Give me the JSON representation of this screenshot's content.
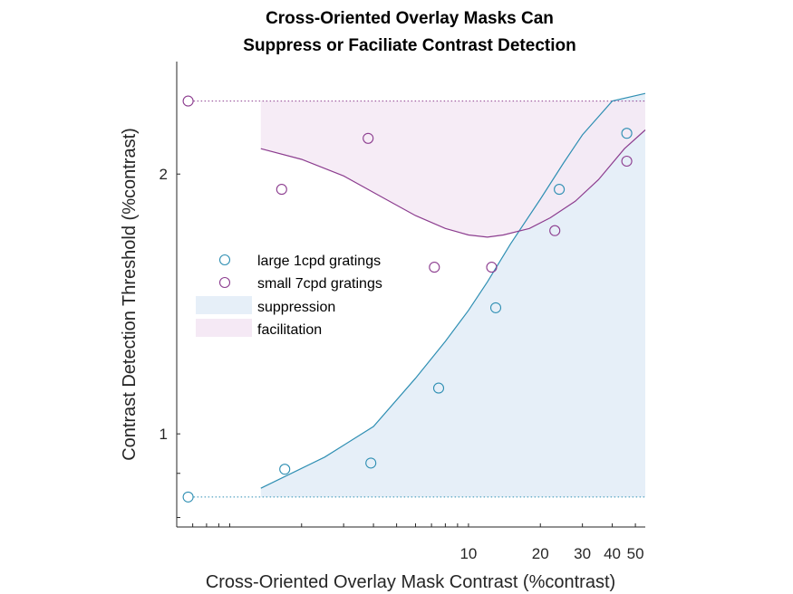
{
  "chart_data": {
    "type": "scatter",
    "title_lines": [
      "Cross-Oriented Overlay Masks Can",
      "Suppress or Faciliate Contrast Detection"
    ],
    "xlabel": "Cross-Oriented Overlay Mask Contrast (%contrast)",
    "ylabel": "Contrast Detection Threshold (%contrast)",
    "x_scale": "log",
    "y_scale": "log",
    "xlim": [
      0.6,
      55
    ],
    "ylim": [
      0.78,
      2.7
    ],
    "x_ticks": [
      10,
      20,
      30,
      40,
      50
    ],
    "x_tick_labels": [
      "10",
      "20",
      "30",
      "40",
      "50"
    ],
    "y_ticks": [
      1,
      2
    ],
    "y_tick_labels": [
      "1",
      "2"
    ],
    "grid": false,
    "legend_position": "middle-left",
    "series": [
      {
        "name": "large 1cpd gratings",
        "color": "#2f8fb3",
        "marker": "circle-open",
        "points": [
          [
            0.67,
            0.845
          ],
          [
            1.7,
            0.91
          ],
          [
            3.9,
            0.925
          ],
          [
            7.5,
            1.13
          ],
          [
            13,
            1.4
          ],
          [
            24,
            1.92
          ],
          [
            46,
            2.23
          ]
        ]
      },
      {
        "name": "small 7cpd gratings",
        "color": "#8c3d8f",
        "marker": "circle-open",
        "points": [
          [
            0.67,
            2.43
          ],
          [
            1.65,
            1.92
          ],
          [
            3.8,
            2.2
          ],
          [
            7.2,
            1.56
          ],
          [
            12.5,
            1.56
          ],
          [
            23,
            1.72
          ],
          [
            46,
            2.07
          ]
        ]
      }
    ],
    "fits": [
      {
        "series": "large 1cpd gratings",
        "color": "#2f8fb3",
        "points": [
          [
            1.35,
            0.865
          ],
          [
            2.5,
            0.94
          ],
          [
            4,
            1.02
          ],
          [
            6,
            1.16
          ],
          [
            8,
            1.28
          ],
          [
            10,
            1.39
          ],
          [
            12,
            1.5
          ],
          [
            15,
            1.66
          ],
          [
            20,
            1.87
          ],
          [
            25,
            2.06
          ],
          [
            30,
            2.22
          ],
          [
            40,
            2.43
          ],
          [
            55,
            2.48
          ]
        ]
      },
      {
        "series": "small 7cpd gratings",
        "color": "#8c3d8f",
        "points": [
          [
            1.35,
            2.14
          ],
          [
            2,
            2.08
          ],
          [
            3,
            1.99
          ],
          [
            4.5,
            1.87
          ],
          [
            6,
            1.79
          ],
          [
            8,
            1.73
          ],
          [
            10,
            1.7
          ],
          [
            12,
            1.69
          ],
          [
            14,
            1.7
          ],
          [
            18,
            1.73
          ],
          [
            22,
            1.78
          ],
          [
            28,
            1.86
          ],
          [
            35,
            1.97
          ],
          [
            45,
            2.14
          ],
          [
            55,
            2.25
          ]
        ]
      }
    ],
    "reference_lines": [
      {
        "y": 0.845,
        "color": "#2f8fb3",
        "style": "dotted"
      },
      {
        "y": 2.43,
        "color": "#8c3d8f",
        "style": "dotted"
      }
    ],
    "shaded_regions": [
      {
        "name": "suppression",
        "color": "#e6eff8"
      },
      {
        "name": "facilitation",
        "color": "#f5e9f5"
      }
    ]
  }
}
